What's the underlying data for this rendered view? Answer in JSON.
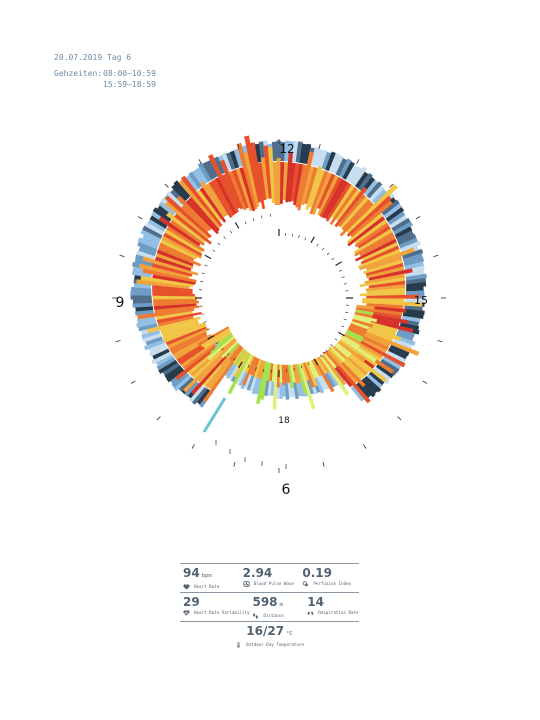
{
  "header": {
    "date_line": "20.07.2019 Tag 6",
    "hours_label": "Gehzeiten:",
    "hours": [
      "08:00–10:59",
      "15:59–18:59"
    ]
  },
  "clock": {
    "labels": {
      "h12": "12",
      "h15": "15",
      "h9": "9",
      "h6": "6",
      "h18": "18"
    }
  },
  "colors": {
    "text": "#526273",
    "hr_scale": [
      "#e2f07a",
      "#a6e04b",
      "#f1c545",
      "#f2a23c",
      "#ee7b32",
      "#e6512c",
      "#d6322a"
    ],
    "hrv_scale": [
      "#c7def0",
      "#93bfe4",
      "#6f9cc4",
      "#4f6e8c",
      "#263b4c"
    ],
    "accent_teal": "#6cc3cf"
  },
  "stats": {
    "row1": [
      {
        "value": "94",
        "unit": "bpm",
        "label": "Heart Rate",
        "icon": "heart-icon"
      },
      {
        "value": "2.94",
        "unit": "",
        "label": "Blood Pulse Wave",
        "icon": "pulse-wave-icon"
      },
      {
        "value": "0.19",
        "unit": "",
        "label": "Perfusion Index",
        "icon": "perfusion-icon"
      }
    ],
    "row2": [
      {
        "value": "29",
        "unit": "",
        "label": "Heart Rate Variability",
        "icon": "hrv-icon"
      },
      {
        "value": "598",
        "unit": "m",
        "label": "Distance",
        "icon": "footsteps-icon"
      },
      {
        "value": "14",
        "unit": "",
        "label": "Respiration Rate",
        "icon": "lungs-icon"
      }
    ],
    "temperature": {
      "value": "16/27",
      "unit": "°C",
      "label": "Outdoor Day Temperature",
      "icon": "thermometer-icon"
    }
  }
}
